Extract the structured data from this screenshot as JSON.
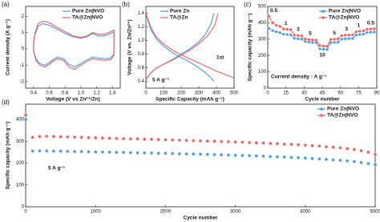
{
  "chart_data": [
    {
      "type": "line",
      "panel_label": "(a)",
      "xlabel": "Voltage (V vs Zn²⁺/Zn)",
      "ylabel": "Current density (A g⁻¹)",
      "xlim": [
        0.3,
        1.5
      ],
      "ylim": [
        -2.4,
        2.6
      ],
      "xticks": [
        0.4,
        0.6,
        0.8,
        {
          "value": 1,
          "label": "1.0"
        },
        1.2,
        1.4
      ],
      "yticks": [
        -2,
        -1,
        0,
        1,
        2
      ],
      "legend": "upper right",
      "series": [
        {
          "name": "Pure Zn|NVO",
          "color": "#4a9be0",
          "x": [
            0.4,
            0.42,
            0.46,
            0.52,
            0.6,
            0.7,
            0.8,
            0.9,
            1.0,
            1.08,
            1.15,
            1.22,
            1.3,
            1.38,
            1.42,
            1.42,
            1.38,
            1.3,
            1.22,
            1.15,
            1.08,
            1.0,
            0.92,
            0.85,
            0.78,
            0.7,
            0.62,
            0.55,
            0.48,
            0.43,
            0.4,
            0.4
          ],
          "values": [
            0.3,
            0.9,
            1.4,
            1.55,
            1.45,
            1.2,
            0.95,
            0.75,
            0.65,
            0.75,
            0.95,
            0.8,
            0.8,
            0.95,
            1.05,
            -0.3,
            -0.55,
            -0.6,
            -0.55,
            -0.5,
            -0.65,
            -0.9,
            -1.1,
            -0.95,
            -0.6,
            -0.5,
            -0.75,
            -1.0,
            -0.9,
            -0.6,
            -0.1,
            0.3
          ]
        },
        {
          "name": "TA@Zn|NVO",
          "color": "#ef5f5f",
          "x": [
            0.4,
            0.42,
            0.46,
            0.52,
            0.6,
            0.7,
            0.8,
            0.9,
            1.0,
            1.08,
            1.15,
            1.22,
            1.3,
            1.38,
            1.42,
            1.42,
            1.38,
            1.3,
            1.22,
            1.15,
            1.08,
            1.0,
            0.92,
            0.85,
            0.78,
            0.7,
            0.62,
            0.55,
            0.48,
            0.43,
            0.4,
            0.4
          ],
          "values": [
            0.4,
            1.0,
            1.55,
            1.7,
            1.6,
            1.3,
            1.05,
            0.8,
            0.7,
            0.8,
            1.0,
            0.9,
            0.9,
            1.05,
            1.15,
            -0.4,
            -0.65,
            -0.7,
            -0.65,
            -0.6,
            -0.75,
            -1.0,
            -1.25,
            -1.1,
            -0.7,
            -0.6,
            -0.85,
            -1.1,
            -1.0,
            -0.7,
            -0.15,
            0.4
          ]
        }
      ]
    },
    {
      "type": "line",
      "panel_label": "(b)",
      "xlabel": "Specific Capacity (mAh g⁻¹)",
      "ylabel": "Voltage (V vs. Zn/Zn²⁺)",
      "xlim": [
        0,
        500
      ],
      "ylim": [
        0.3,
        1.5
      ],
      "xticks": [
        0,
        100,
        200,
        300,
        400,
        500
      ],
      "yticks": [
        0.4,
        0.6,
        0.8,
        {
          "value": 1,
          "label": "1.0"
        },
        1.2,
        1.4
      ],
      "legend": "upper left",
      "annotations": [
        "5 A g⁻¹",
        "1st"
      ],
      "series": [
        {
          "name": "Pure Zn",
          "color": "#4a9be0",
          "x": [
            0,
            20,
            50,
            100,
            150,
            200,
            250,
            300,
            340,
            370,
            385,
            null,
            0,
            10,
            30,
            60,
            100,
            150,
            200,
            250,
            300,
            340,
            370,
            385
          ],
          "values": [
            0.42,
            0.5,
            0.58,
            0.65,
            0.72,
            0.8,
            0.88,
            0.98,
            1.1,
            1.25,
            1.4,
            null,
            1.4,
            1.3,
            1.15,
            1.02,
            0.92,
            0.82,
            0.75,
            0.68,
            0.6,
            0.52,
            0.45,
            0.4
          ]
        },
        {
          "name": "TA@Zn",
          "color": "#ef5f5f",
          "x": [
            0,
            20,
            50,
            100,
            150,
            200,
            250,
            300,
            350,
            390,
            410,
            null,
            0,
            10,
            30,
            60,
            100,
            150,
            200,
            250,
            300,
            350,
            400,
            450,
            500
          ],
          "values": [
            0.42,
            0.5,
            0.58,
            0.65,
            0.71,
            0.78,
            0.86,
            0.95,
            1.07,
            1.22,
            1.4,
            null,
            1.4,
            1.32,
            1.18,
            1.05,
            0.95,
            0.86,
            0.79,
            0.73,
            0.67,
            0.61,
            0.55,
            0.5,
            0.45
          ]
        }
      ]
    },
    {
      "type": "line",
      "markers": true,
      "panel_label": "(c)",
      "xlabel": "Cycle number",
      "ylabel": "Specific capacity (mAh g⁻¹)",
      "xlim": [
        0,
        90
      ],
      "ylim": [
        0,
        500
      ],
      "xticks": [
        0,
        15,
        30,
        45,
        60,
        75,
        90
      ],
      "yticks": [
        0,
        100,
        200,
        300,
        400,
        500
      ],
      "legend": "upper right",
      "annotations": [
        "Current density : A g⁻¹"
      ],
      "rate_labels": [
        "0.5",
        "1",
        "3",
        "5",
        "10",
        "5",
        "3",
        "1",
        "0.5"
      ],
      "x": [
        1,
        4,
        7,
        10,
        13,
        16,
        19,
        22,
        25,
        28,
        31,
        34,
        37,
        40,
        43,
        46,
        49,
        52,
        55,
        58,
        61,
        64,
        67,
        70,
        73,
        76,
        79,
        82,
        85,
        88
      ],
      "series": [
        {
          "name": "Pure Zn|NVO",
          "color": "#4a9be0",
          "values": [
            365,
            352,
            345,
            340,
            330,
            328,
            326,
            305,
            302,
            300,
            285,
            282,
            280,
            279,
            240,
            238,
            236,
            278,
            280,
            281,
            300,
            302,
            303,
            303,
            325,
            328,
            330,
            340,
            342,
            343
          ]
        },
        {
          "name": "TA@Zn|NVO",
          "color": "#ef5f5f",
          "values": [
            440,
            400,
            385,
            378,
            362,
            360,
            358,
            325,
            322,
            320,
            300,
            297,
            295,
            294,
            262,
            258,
            256,
            298,
            300,
            302,
            322,
            324,
            325,
            326,
            345,
            348,
            350,
            360,
            362,
            363
          ]
        }
      ]
    },
    {
      "type": "scatter",
      "panel_label": "(d)",
      "xlabel": "Cycle number",
      "ylabel": "Specific capacity (mAh g⁻¹)",
      "xlim": [
        0,
        5000
      ],
      "ylim": [
        0,
        470
      ],
      "xticks": [
        0,
        1000,
        2000,
        3000,
        4000,
        5000
      ],
      "yticks": [
        0,
        100,
        200,
        300,
        400
      ],
      "legend": "upper right",
      "annotations": [
        "5 A g⁻¹"
      ],
      "x": [
        1,
        100,
        200,
        300,
        400,
        500,
        600,
        700,
        800,
        900,
        1000,
        1100,
        1200,
        1300,
        1400,
        1500,
        1600,
        1700,
        1800,
        1900,
        2000,
        2100,
        2200,
        2300,
        2400,
        2500,
        2600,
        2700,
        2800,
        2900,
        3000,
        3100,
        3200,
        3300,
        3400,
        3500,
        3600,
        3700,
        3800,
        3900,
        4000,
        4100,
        4200,
        4300,
        4400,
        4500,
        4600,
        4700,
        4800,
        4900,
        5000
      ],
      "series": [
        {
          "name": "Pure Zn|NVO",
          "color": "#4a9be0",
          "values": [
            400,
            255,
            256,
            256,
            255,
            255,
            254,
            253,
            253,
            252,
            251,
            251,
            250,
            249,
            249,
            248,
            247,
            247,
            246,
            245,
            245,
            244,
            243,
            242,
            242,
            241,
            240,
            239,
            238,
            237,
            236,
            235,
            234,
            233,
            232,
            230,
            229,
            228,
            226,
            225,
            223,
            221,
            219,
            217,
            215,
            213,
            210,
            207,
            203,
            198,
            193
          ]
        },
        {
          "name": "TA@Zn|NVO",
          "color": "#ef5f5f",
          "values": [
            420,
            318,
            322,
            323,
            322,
            321,
            320,
            319,
            318,
            317,
            316,
            315,
            314,
            313,
            312,
            311,
            311,
            310,
            309,
            308,
            307,
            306,
            305,
            304,
            303,
            302,
            301,
            300,
            299,
            298,
            297,
            296,
            294,
            293,
            292,
            290,
            289,
            287,
            286,
            284,
            282,
            280,
            278,
            275,
            273,
            270,
            266,
            262,
            257,
            250,
            240
          ]
        }
      ]
    }
  ]
}
